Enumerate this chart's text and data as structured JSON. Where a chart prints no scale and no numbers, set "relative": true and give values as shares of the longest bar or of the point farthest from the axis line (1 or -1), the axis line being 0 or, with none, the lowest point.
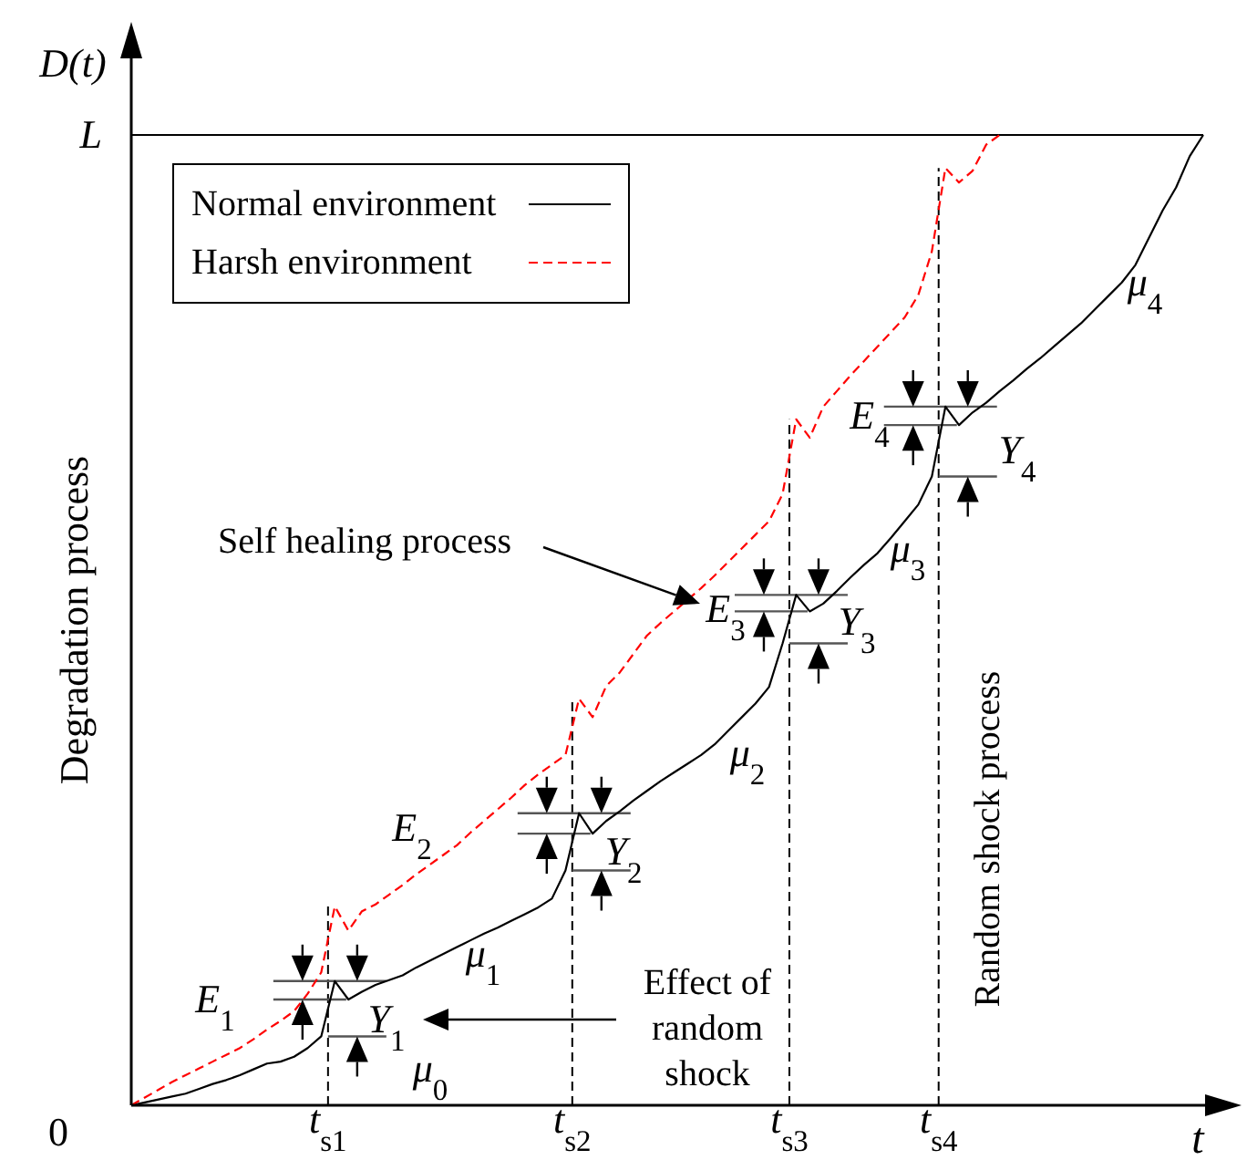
{
  "chart_data": {
    "type": "line",
    "relative": true,
    "xlabel": "t",
    "ylabel": "Degradation process",
    "legend": "top left",
    "categories": [
      null,
      null,
      null,
      null,
      null,
      null,
      null,
      null,
      null,
      null,
      null,
      null,
      null,
      null,
      null,
      null,
      null,
      null,
      null,
      null,
      null,
      null,
      null,
      null,
      null,
      null,
      null,
      null,
      null,
      null,
      null,
      null,
      null,
      null,
      null,
      null,
      null,
      null,
      null,
      null,
      null,
      null,
      null,
      null,
      null,
      null,
      null,
      null,
      null,
      null,
      null,
      null,
      null,
      null,
      null,
      null,
      null,
      null,
      null,
      null,
      null,
      null,
      null,
      null,
      null,
      null,
      null,
      null,
      null,
      null,
      null,
      null,
      null,
      null,
      null,
      null,
      null,
      null,
      null,
      null
    ],
    "series": [
      {
        "name": "Normal environment",
        "color": "#000000",
        "line_style": "solid",
        "values": [
          0,
          0.003,
          0.006,
          0.009,
          0.012,
          0.017,
          0.022,
          0.026,
          0.031,
          0.037,
          0.043,
          0.045,
          0.05,
          0.059,
          0.071,
          0.128,
          0.109,
          0.117,
          0.124,
          0.129,
          0.134,
          0.142,
          0.149,
          0.156,
          0.163,
          0.17,
          0.177,
          0.183,
          0.19,
          0.197,
          0.204,
          0.213,
          0.242,
          0.301,
          0.28,
          0.293,
          0.303,
          0.314,
          0.324,
          0.334,
          0.343,
          0.352,
          0.361,
          0.372,
          0.386,
          0.4,
          0.414,
          0.431,
          0.476,
          0.526,
          0.509,
          0.517,
          0.53,
          0.544,
          0.557,
          0.569,
          0.585,
          0.602,
          0.619,
          0.648,
          0.72,
          0.701,
          0.714,
          0.724,
          0.736,
          0.747,
          0.759,
          0.77,
          0.782,
          0.794,
          0.806,
          0.82,
          0.834,
          0.848,
          0.866,
          0.894,
          0.922,
          0.946,
          0.978,
          1
        ]
      },
      {
        "name": "Harsh environment",
        "color": "#ff0000",
        "line_style": "dashed",
        "values": [
          0,
          0.008,
          0.016,
          0.024,
          0.031,
          0.038,
          0.045,
          0.052,
          0.059,
          0.068,
          0.078,
          0.087,
          0.097,
          0.115,
          0.137,
          0.205,
          0.18,
          0.2,
          0.207,
          0.217,
          0.227,
          0.238,
          0.248,
          0.258,
          0.268,
          0.281,
          0.293,
          0.305,
          0.317,
          0.33,
          0.341,
          0.351,
          0.361,
          0.419,
          0.4,
          0.432,
          0.446,
          0.465,
          0.484,
          0.497,
          0.509,
          0.521,
          0.533,
          0.546,
          0.56,
          0.574,
          0.588,
          0.602,
          0.63,
          0.707,
          0.688,
          0.72,
          0.736,
          0.752,
          0.767,
          0.782,
          0.797,
          0.812,
          0.835,
          0.88,
          0.966,
          0.951,
          0.963,
          0.99,
          1,
          null,
          null,
          null,
          null,
          null,
          null,
          null,
          null,
          null,
          null,
          null,
          null,
          null,
          null,
          null
        ]
      }
    ],
    "ref_lines": [
      {
        "axis": "y",
        "value": 1,
        "label": "L",
        "color": "#000000",
        "line_style": "solid"
      }
    ],
    "annotations": [
      "D(t)",
      "0",
      "μ$_{0}$",
      "μ$_{1}$",
      "μ$_{2}$",
      "μ$_{3}$",
      "μ$_{4}$",
      "E$_{1}$",
      "Y$_{1}$",
      "E$_{2}$",
      "Y$_{2}$",
      "E$_{3}$",
      "Y$_{3}$",
      "E$_{4}$",
      "Y$_{4}$",
      "Self healing process",
      "Effect of random shock",
      "Random shock process",
      "t$_{s1}$",
      "t$_{s2}$",
      "t$_{s3}$",
      "t$_{s4}$"
    ]
  }
}
